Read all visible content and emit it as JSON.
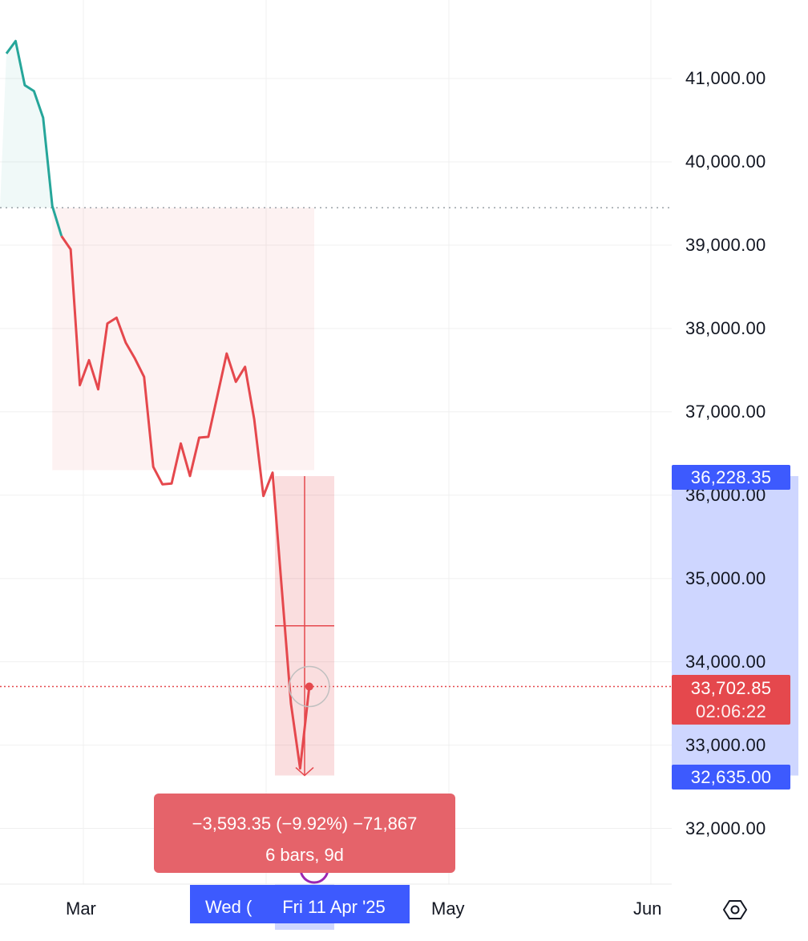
{
  "chart_data": {
    "type": "line",
    "y_axis_labels": [
      "41,000.00",
      "40,000.00",
      "39,000.00",
      "38,000.00",
      "37,000.00",
      "36,000.00",
      "35,000.00",
      "34,000.00",
      "33,000.00",
      "32,000.00"
    ],
    "y_axis_values": [
      41000,
      40000,
      39000,
      38000,
      37000,
      36000,
      35000,
      34000,
      33000,
      32000
    ],
    "x_axis_labels": [
      "Mar",
      "May",
      "Jun"
    ],
    "ylim": [
      31500,
      42000
    ],
    "grid": true,
    "baseline": 39450,
    "series": [
      {
        "values": [
          41300,
          41450,
          40920,
          40850,
          40530,
          39470,
          39110,
          38950,
          37320,
          37620,
          37270,
          38060,
          38130,
          37830,
          37640,
          37420,
          36340,
          36130,
          36140,
          36620,
          36230,
          36690,
          36700,
          37200,
          37700,
          37360,
          37540,
          36910,
          35990,
          36270,
          34880,
          33500,
          32720,
          33700
        ]
      }
    ],
    "annotations": {
      "current_price": 33702.85,
      "measure_high": 36228.35,
      "measure_low": 32635.0
    },
    "colors": {
      "up": "#26a69a",
      "down": "#e5484d",
      "accent": "#3d5afe"
    }
  },
  "labels": {
    "measure_high_tag": "36,228.35",
    "measure_low_tag": "32,635.00",
    "current_price_tag": "33,702.85",
    "countdown": "02:06:22",
    "measure_line1": "−3,593.35 (−9.92%) −71,867",
    "measure_line2": "6 bars, 9d",
    "date_chip_back": "Wed (",
    "date_chip_front": "Fri 11 Apr '25"
  }
}
